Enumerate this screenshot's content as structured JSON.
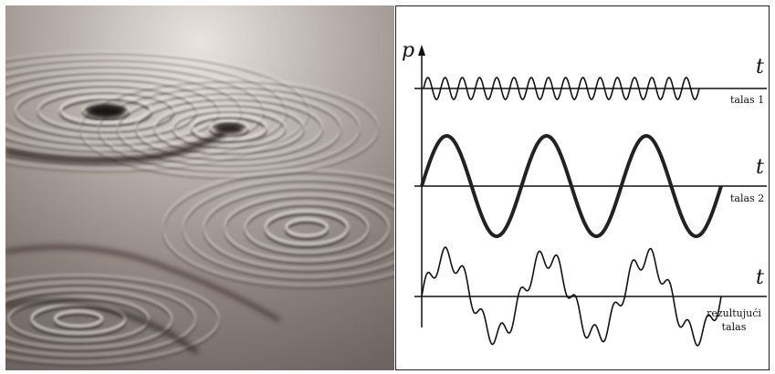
{
  "photo": {
    "subject": "water ripples interference"
  },
  "diagram": {
    "y_axis_label": "p",
    "time_label": "t",
    "wave1_label": "talas 1",
    "wave2_label": "talas 2",
    "result_label_line1": "rezultujući",
    "result_label_line2": "talas"
  },
  "waves": {
    "wave1": {
      "cycles": 16,
      "amplitude": 1
    },
    "wave2": {
      "cycles": 3,
      "amplitude": 1
    },
    "result": {
      "components": [
        "wave1",
        "wave2"
      ]
    }
  }
}
